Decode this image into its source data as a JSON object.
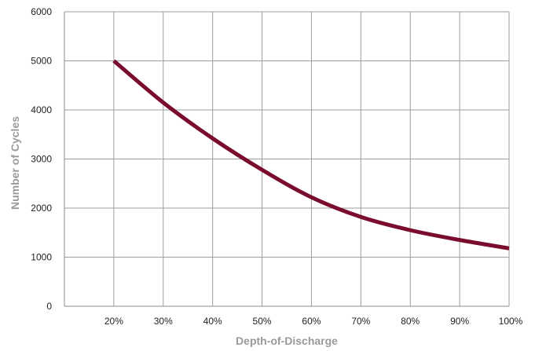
{
  "chart_data": {
    "type": "line",
    "title": "",
    "xlabel": "Depth-of-Discharge",
    "ylabel": "Number of Cycles",
    "xlim": [
      10,
      100
    ],
    "ylim": [
      0,
      6000
    ],
    "x_ticks": [
      20,
      30,
      40,
      50,
      60,
      70,
      80,
      90,
      100
    ],
    "x_tick_labels": [
      "20%",
      "30%",
      "40%",
      "50%",
      "60%",
      "70%",
      "80%",
      "90%",
      "100%"
    ],
    "y_ticks": [
      0,
      1000,
      2000,
      3000,
      4000,
      5000,
      6000
    ],
    "y_tick_labels": [
      "0",
      "1000",
      "2000",
      "3000",
      "4000",
      "5000",
      "6000"
    ],
    "grid": true,
    "legend": "none",
    "series": [
      {
        "color": "#7a0c2e",
        "x": [
          20,
          30,
          40,
          50,
          60,
          70,
          80,
          90,
          100
        ],
        "y": [
          5000,
          4150,
          3420,
          2780,
          2220,
          1820,
          1550,
          1350,
          1180
        ]
      }
    ]
  },
  "colors": {
    "gridline": "#9e9e9e",
    "axis": "#8c8c8c",
    "series": "#7a0c2e"
  }
}
